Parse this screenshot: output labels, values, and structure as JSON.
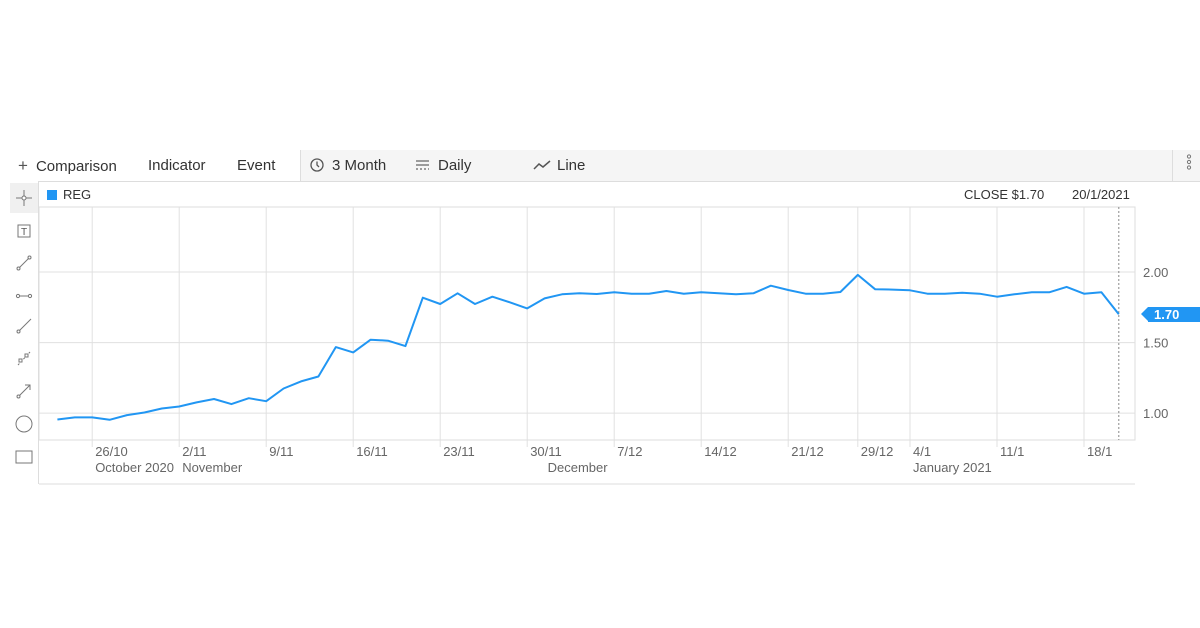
{
  "toolbar": {
    "comparison": "Comparison",
    "indicator": "Indicator",
    "event": "Event",
    "range": "3 Month",
    "interval": "Daily",
    "chart_type": "Line"
  },
  "side_tools": [
    "crosshair-icon",
    "text-box-icon",
    "line-segment-icon",
    "horizontal-line-icon",
    "ray-icon",
    "channel-icon",
    "arrow-icon",
    "circle-icon",
    "rectangle-icon"
  ],
  "header": {
    "symbol": "REG",
    "close": "CLOSE $1.70",
    "date": "20/1/2021"
  },
  "colors": {
    "series": "#2196f3",
    "grid": "#e0e0e0",
    "toolbar_bg": "#f5f5f5"
  },
  "chart_data": {
    "type": "line",
    "series": [
      {
        "name": "REG",
        "color": "#2196f3",
        "dates": [
          "22/10",
          "23/10",
          "26/10",
          "27/10",
          "28/10",
          "29/10",
          "30/10",
          "2/11",
          "3/11",
          "4/11",
          "5/11",
          "6/11",
          "9/11",
          "10/11",
          "11/11",
          "12/11",
          "13/11",
          "16/11",
          "17/11",
          "18/11",
          "19/11",
          "20/11",
          "23/11",
          "24/11",
          "25/11",
          "26/11",
          "27/11",
          "30/11",
          "1/12",
          "2/12",
          "3/12",
          "4/12",
          "7/12",
          "8/12",
          "9/12",
          "10/12",
          "11/12",
          "14/12",
          "15/12",
          "16/12",
          "17/12",
          "18/12",
          "21/12",
          "22/12",
          "23/12",
          "24/12",
          "29/12",
          "30/12",
          "31/12",
          "4/1",
          "5/1",
          "6/1",
          "7/1",
          "8/1",
          "11/1",
          "12/1",
          "13/1",
          "14/1",
          "15/1",
          "18/1",
          "19/1",
          "20/1"
        ],
        "values": [
          0.955,
          0.97,
          0.97,
          0.953,
          0.986,
          1.005,
          1.033,
          1.047,
          1.076,
          1.1,
          1.064,
          1.106,
          1.085,
          1.175,
          1.225,
          1.26,
          1.468,
          1.43,
          1.52,
          1.513,
          1.475,
          1.818,
          1.773,
          1.849,
          1.773,
          1.825,
          1.785,
          1.742,
          1.813,
          1.842,
          1.849,
          1.844,
          1.856,
          1.846,
          1.846,
          1.865,
          1.846,
          1.856,
          1.849,
          1.842,
          1.849,
          1.903,
          1.872,
          1.846,
          1.846,
          1.858,
          1.979,
          1.877,
          1.875,
          1.87,
          1.846,
          1.846,
          1.853,
          1.846,
          1.825,
          1.842,
          1.856,
          1.856,
          1.894,
          1.846,
          1.856,
          1.7
        ]
      }
    ],
    "x_ticks": [
      {
        "label": "26/10",
        "date": "26/10"
      },
      {
        "label": "2/11",
        "date": "2/11"
      },
      {
        "label": "9/11",
        "date": "9/11"
      },
      {
        "label": "16/11",
        "date": "16/11"
      },
      {
        "label": "23/11",
        "date": "23/11"
      },
      {
        "label": "30/11",
        "date": "30/11"
      },
      {
        "label": "7/12",
        "date": "7/12"
      },
      {
        "label": "14/12",
        "date": "14/12"
      },
      {
        "label": "21/12",
        "date": "21/12"
      },
      {
        "label": "29/12",
        "date": "29/12"
      },
      {
        "label": "4/1",
        "date": "4/1"
      },
      {
        "label": "11/1",
        "date": "11/1"
      },
      {
        "label": "18/1",
        "date": "18/1"
      }
    ],
    "month_labels": [
      {
        "label": "October 2020",
        "date": "26/10"
      },
      {
        "label": "November",
        "date": "2/11"
      },
      {
        "label": "December",
        "date": "1/12"
      },
      {
        "label": "January 2021",
        "date": "4/1"
      }
    ],
    "y_ticks": [
      1.0,
      1.5,
      2.0
    ],
    "y_tick_labels": [
      "1.00",
      "1.50",
      "2.00"
    ],
    "ylim": [
      0.81,
      2.46
    ],
    "last_value_label": "1.70",
    "grid": true,
    "legend": "top-left"
  }
}
